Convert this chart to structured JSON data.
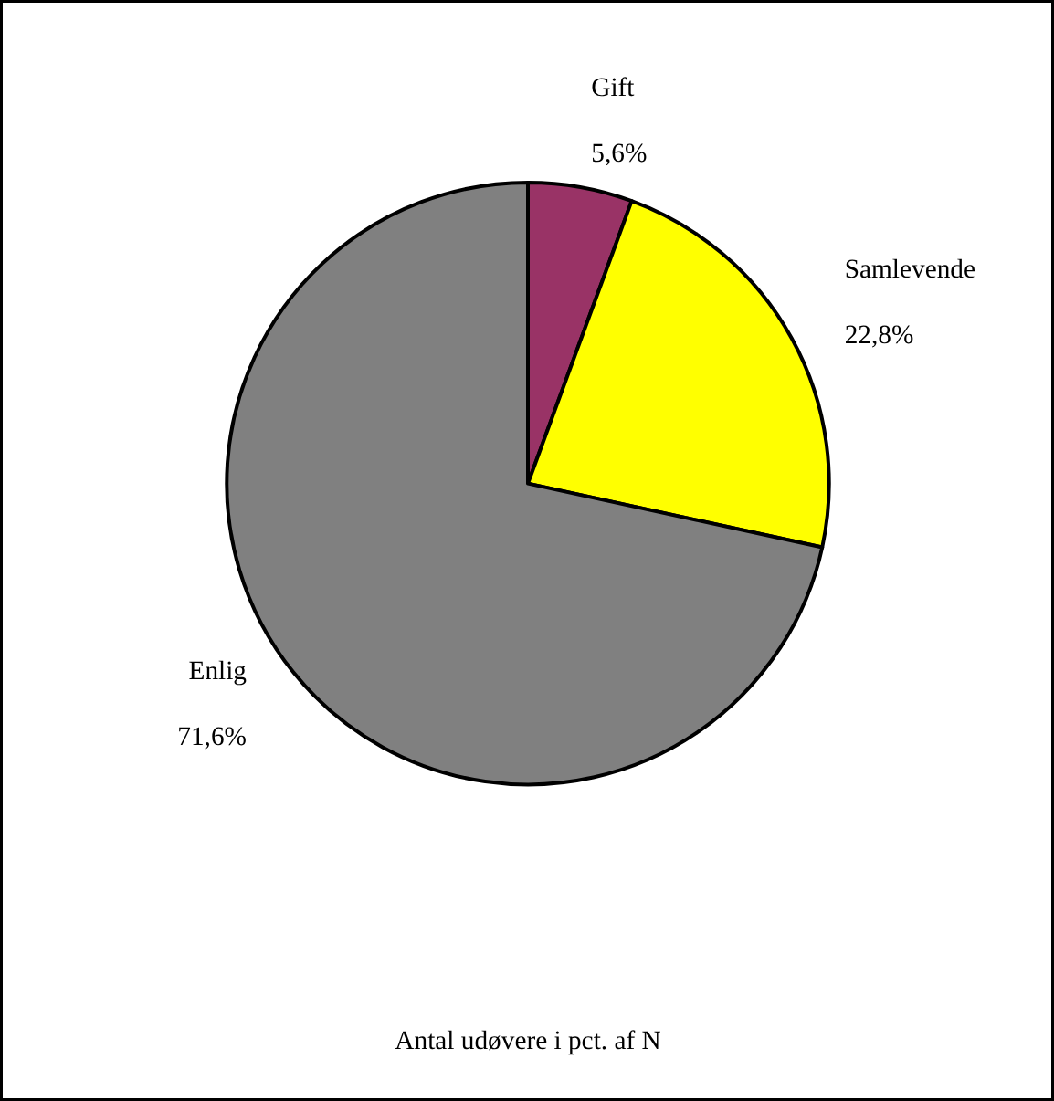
{
  "chart_data": {
    "type": "pie",
    "title": "Antal udøvere i pct. af N",
    "categories": [
      "Gift",
      "Samlevende",
      "Enlig"
    ],
    "values": [
      5.6,
      22.8,
      71.6
    ],
    "colors": [
      "#993366",
      "#ffff00",
      "#808080"
    ],
    "value_labels": [
      "5,6%",
      "22,8%",
      "71,6%"
    ]
  }
}
